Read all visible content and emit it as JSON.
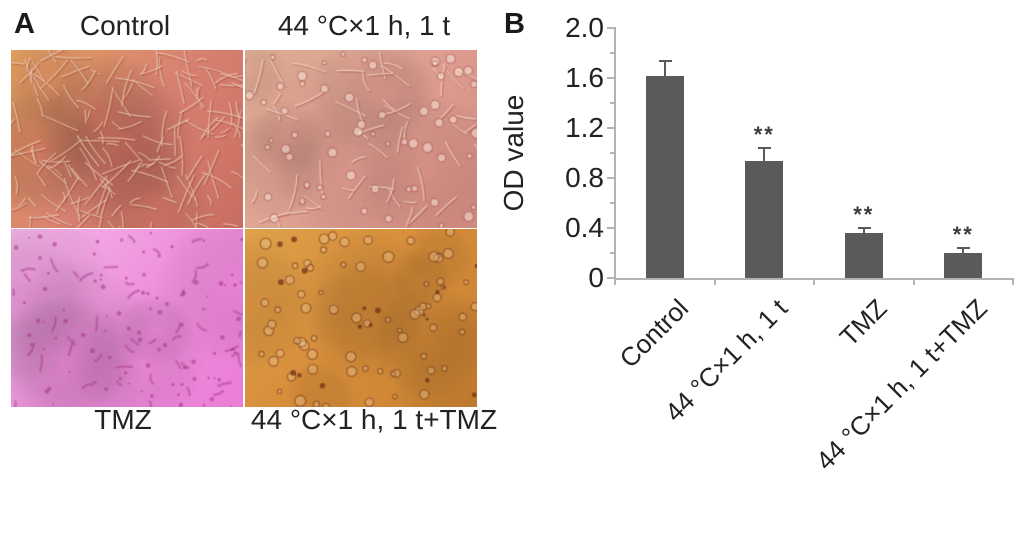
{
  "figure": {
    "panelA": {
      "label": "A",
      "top_labels": [
        "Control",
        "44 °C×1 h, 1 t"
      ],
      "bottom_labels": [
        "TMZ",
        "44 °C×1 h, 1 t+TMZ"
      ],
      "micrographs": [
        {
          "id": "micrograph-control",
          "condition": "Control",
          "appearance": "dense spindle-shaped adherent cells, eosin orange-salmon stain",
          "bg": [
            "#e2a05e",
            "#d98272",
            "#c86e60"
          ],
          "blotch": "rgba(198,92,78,0.20)",
          "seed": 11,
          "features": [
            {
              "type": "spindle",
              "count": 160,
              "light": "rgba(248,224,202,0.65)",
              "dark": "rgba(156,62,48,0.30)",
              "minLen": 10,
              "maxLen": 42
            }
          ]
        },
        {
          "id": "micrograph-heat",
          "condition": "44 °C×1 h, 1 t",
          "appearance": "fewer spindle cells with rounded vesicular cells, pale peach-pink stain",
          "bg": [
            "#e8b79c",
            "#dfa092",
            "#d28a80"
          ],
          "blotch": "rgba(205,120,120,0.18)",
          "seed": 22,
          "features": [
            {
              "type": "spindle",
              "count": 55,
              "light": "rgba(250,230,214,0.70)",
              "dark": "rgba(170,80,70,0.35)",
              "minLen": 12,
              "maxLen": 38
            },
            {
              "type": "ring",
              "count": 60,
              "stroke": "rgba(164,74,70,0.45)",
              "fill": "rgba(252,236,224,0.50)",
              "minR": 2,
              "maxR": 5
            }
          ]
        },
        {
          "id": "micrograph-tmz",
          "condition": "TMZ",
          "appearance": "sparse shrunken cells on bright magenta-pink background",
          "bg": [
            "#f6b9ea",
            "#ef92dd",
            "#ea7ed6"
          ],
          "blotch": "rgba(220,110,195,0.20)",
          "seed": 33,
          "features": [
            {
              "type": "dot",
              "count": 90,
              "color": "rgba(168,52,138,0.55)",
              "minR": 1,
              "maxR": 2.5
            },
            {
              "type": "spindle",
              "count": 45,
              "light": "rgba(214,120,190,0.50)",
              "dark": "rgba(150,40,120,0.40)",
              "minLen": 6,
              "maxLen": 18
            }
          ]
        },
        {
          "id": "micrograph-combo",
          "condition": "44 °C×1 h, 1 t+TMZ",
          "appearance": "rounded dying cells as dark rings on amber-orange background",
          "bg": [
            "#e0a14a",
            "#d68d3a",
            "#c98232"
          ],
          "blotch": "rgba(170,100,40,0.20)",
          "seed": 44,
          "features": [
            {
              "type": "ring",
              "count": 72,
              "stroke": "rgba(122,56,24,0.55)",
              "fill": "rgba(240,210,160,0.35)",
              "minR": 2,
              "maxR": 5.5
            },
            {
              "type": "dot",
              "count": 18,
              "color": "rgba(110,45,20,0.70)",
              "minR": 1.5,
              "maxR": 3
            }
          ]
        }
      ]
    },
    "panelB": {
      "label": "B"
    }
  },
  "chart_data": {
    "type": "bar",
    "title": "",
    "xlabel": "",
    "ylabel": "OD value",
    "categories": [
      "Control",
      "44 °C×1 h, 1 t",
      "TMZ",
      "44 °C×1 h, 1 t+TMZ"
    ],
    "values": [
      1.62,
      0.94,
      0.36,
      0.2
    ],
    "errors": [
      0.12,
      0.1,
      0.04,
      0.04
    ],
    "significance": [
      "",
      "**",
      "**",
      "**"
    ],
    "yticks": [
      0,
      0.4,
      0.8,
      1.2,
      1.6,
      2.0
    ],
    "ytick_labels": [
      "0",
      "0.4",
      "0.8",
      "1.2",
      "1.6",
      "2.0"
    ],
    "minor_ytick_step": 0.2,
    "ylim": [
      0,
      2.0
    ],
    "grid": false,
    "legend_position": "none",
    "bar_color": "#5a5a5a",
    "axis_color": "#b3b3b3",
    "x_label_rotation_deg": 45
  },
  "colors": {
    "background": "#ffffff",
    "text": "#1c1c1c",
    "bar": "#5a5a5a",
    "axis": "#b3b3b3"
  }
}
